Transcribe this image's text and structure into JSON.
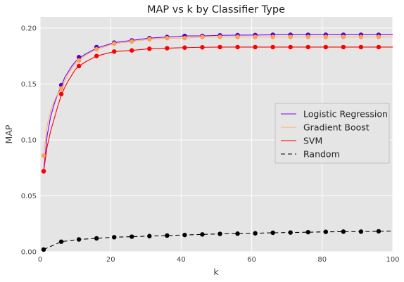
{
  "chart_data": {
    "type": "line",
    "title": "MAP vs k by Classifier Type",
    "xlabel": "k",
    "ylabel": "MAP",
    "xlim": [
      0,
      100
    ],
    "ylim": [
      0.0,
      0.21
    ],
    "x_ticks": [
      "0",
      "20",
      "40",
      "60",
      "80",
      "100"
    ],
    "y_ticks": [
      "0.00",
      "0.05",
      "0.10",
      "0.15",
      "0.20"
    ],
    "grid": true,
    "legend_position": "center-right",
    "marker_x": [
      1,
      6,
      11,
      16,
      21,
      26,
      31,
      36,
      41,
      46,
      51,
      56,
      61,
      66,
      71,
      76,
      81,
      86,
      91,
      96
    ],
    "series": [
      {
        "name": "Logistic Regression",
        "color": "#7b00ff",
        "marker_color": "#5a00c8",
        "dash": "none",
        "curve_x": [
          1,
          2,
          3,
          4,
          5,
          6,
          7,
          8,
          9,
          10,
          11,
          13,
          16,
          21,
          26,
          31,
          36,
          41,
          46,
          51,
          56,
          61,
          66,
          71,
          76,
          81,
          86,
          91,
          96,
          100
        ],
        "curve_y": [
          0.072,
          0.104,
          0.121,
          0.132,
          0.141,
          0.148,
          0.156,
          0.161,
          0.166,
          0.17,
          0.173,
          0.177,
          0.182,
          0.187,
          0.189,
          0.191,
          0.192,
          0.193,
          0.193,
          0.1935,
          0.1937,
          0.1938,
          0.194,
          0.194,
          0.194,
          0.194,
          0.194,
          0.194,
          0.194,
          0.194
        ],
        "marker_y": [
          0.072,
          0.149,
          0.174,
          0.183,
          0.187,
          0.189,
          0.191,
          0.192,
          0.193,
          0.193,
          0.1935,
          0.1937,
          0.1938,
          0.194,
          0.194,
          0.194,
          0.194,
          0.194,
          0.194,
          0.194
        ]
      },
      {
        "name": "Gradient Boost",
        "color": "#ffae60",
        "marker_color": "#ffa050",
        "dash": "none",
        "curve_x": [
          1,
          2,
          3,
          4,
          5,
          6,
          7,
          8,
          9,
          10,
          11,
          13,
          16,
          21,
          26,
          31,
          36,
          41,
          46,
          51,
          56,
          61,
          66,
          71,
          76,
          81,
          86,
          91,
          96,
          100
        ],
        "curve_y": [
          0.086,
          0.113,
          0.126,
          0.135,
          0.141,
          0.146,
          0.153,
          0.159,
          0.164,
          0.168,
          0.171,
          0.176,
          0.181,
          0.186,
          0.188,
          0.19,
          0.191,
          0.191,
          0.192,
          0.192,
          0.192,
          0.192,
          0.192,
          0.192,
          0.192,
          0.192,
          0.192,
          0.192,
          0.192,
          0.192
        ],
        "marker_y": [
          0.086,
          0.146,
          0.171,
          0.181,
          0.186,
          0.188,
          0.19,
          0.191,
          0.191,
          0.192,
          0.192,
          0.192,
          0.192,
          0.192,
          0.192,
          0.192,
          0.192,
          0.192,
          0.192,
          0.192
        ]
      },
      {
        "name": "SVM",
        "color": "#ff0000",
        "marker_color": "#ff0000",
        "dash": "none",
        "curve_x": [
          1,
          2,
          3,
          4,
          5,
          6,
          7,
          8,
          9,
          10,
          11,
          13,
          16,
          21,
          26,
          31,
          36,
          41,
          46,
          51,
          56,
          61,
          66,
          71,
          76,
          81,
          86,
          91,
          96,
          100
        ],
        "curve_y": [
          0.072,
          0.094,
          0.108,
          0.119,
          0.13,
          0.14,
          0.147,
          0.153,
          0.158,
          0.163,
          0.166,
          0.17,
          0.175,
          0.179,
          0.18,
          0.1815,
          0.182,
          0.1825,
          0.1828,
          0.183,
          0.183,
          0.183,
          0.183,
          0.183,
          0.183,
          0.183,
          0.183,
          0.183,
          0.183,
          0.183
        ],
        "marker_y": [
          0.072,
          0.141,
          0.166,
          0.175,
          0.179,
          0.18,
          0.1815,
          0.182,
          0.1825,
          0.1828,
          0.183,
          0.183,
          0.183,
          0.183,
          0.183,
          0.183,
          0.183,
          0.183,
          0.183,
          0.183
        ]
      },
      {
        "name": "Random",
        "color": "#000000",
        "marker_color": "#000000",
        "dash": "dashed",
        "curve_x": [
          1,
          6,
          11,
          16,
          21,
          26,
          31,
          36,
          41,
          46,
          51,
          56,
          61,
          66,
          71,
          76,
          81,
          86,
          91,
          96,
          100
        ],
        "curve_y": [
          0.002,
          0.009,
          0.011,
          0.012,
          0.013,
          0.0135,
          0.014,
          0.0145,
          0.015,
          0.0155,
          0.016,
          0.0162,
          0.0165,
          0.017,
          0.0172,
          0.0175,
          0.0178,
          0.018,
          0.018,
          0.0183,
          0.0185
        ],
        "marker_y": [
          0.002,
          0.009,
          0.011,
          0.012,
          0.013,
          0.0135,
          0.014,
          0.0145,
          0.015,
          0.0155,
          0.016,
          0.0162,
          0.0165,
          0.017,
          0.0172,
          0.0175,
          0.0178,
          0.018,
          0.018,
          0.0183
        ]
      }
    ]
  }
}
